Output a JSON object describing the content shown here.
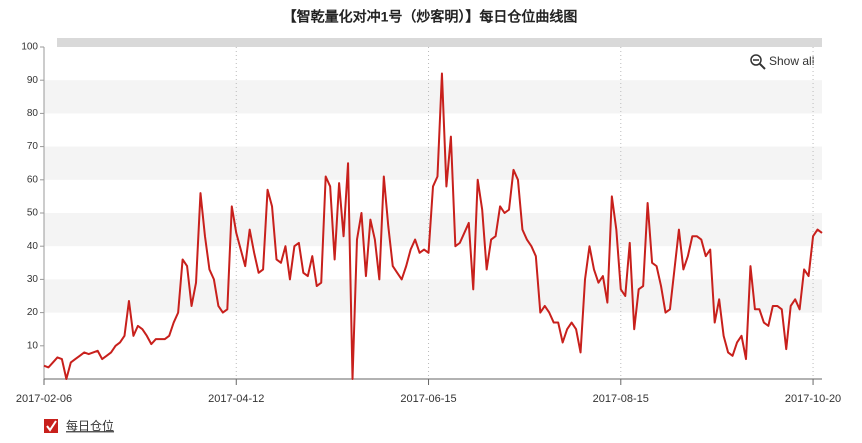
{
  "chart_data": {
    "type": "line",
    "title": "【智乾量化对冲1号（炒客明）】每日仓位曲线图",
    "reset_zoom_label": "Show all",
    "categories": [
      "2017-02-06",
      null,
      null,
      null,
      null,
      null,
      null,
      null,
      null,
      null,
      null,
      null,
      null,
      null,
      null,
      null,
      null,
      null,
      null,
      null,
      null,
      null,
      null,
      null,
      null,
      null,
      null,
      null,
      null,
      null,
      null,
      null,
      null,
      null,
      null,
      null,
      null,
      null,
      null,
      null,
      null,
      null,
      null,
      "2017-04-12",
      null,
      null,
      null,
      null,
      null,
      null,
      null,
      null,
      null,
      null,
      null,
      null,
      null,
      null,
      null,
      null,
      null,
      null,
      null,
      null,
      null,
      null,
      null,
      null,
      null,
      null,
      null,
      null,
      null,
      null,
      null,
      null,
      null,
      null,
      null,
      null,
      null,
      null,
      null,
      null,
      null,
      null,
      "2017-06-15",
      null,
      null,
      null,
      null,
      null,
      null,
      null,
      null,
      null,
      null,
      null,
      null,
      null,
      null,
      null,
      null,
      null,
      null,
      null,
      null,
      null,
      null,
      null,
      null,
      null,
      null,
      null,
      null,
      null,
      null,
      null,
      null,
      null,
      null,
      null,
      null,
      null,
      null,
      null,
      null,
      null,
      null,
      "2017-08-15",
      null,
      null,
      null,
      null,
      null,
      null,
      null,
      null,
      null,
      null,
      null,
      null,
      null,
      null,
      null,
      null,
      null,
      null,
      null,
      null,
      null,
      null,
      null,
      null,
      null,
      null,
      null,
      null,
      null,
      null,
      null,
      null,
      null,
      null,
      null,
      null,
      null,
      null,
      null,
      null,
      null,
      null,
      "2017-10-20",
      null,
      null
    ],
    "series": [
      {
        "name": "每日仓位",
        "color": "#c8201c",
        "values": [
          4,
          3.5,
          5,
          6.5,
          6,
          0,
          5,
          6,
          7,
          8,
          7.5,
          8,
          8.5,
          6,
          7,
          8,
          10,
          11,
          13,
          23.5,
          13,
          16,
          15,
          13,
          10.5,
          12,
          12,
          12,
          13,
          17,
          20,
          36,
          34,
          22,
          29,
          56,
          43,
          33,
          30,
          22,
          20,
          21,
          52,
          44,
          39,
          34,
          45,
          38,
          32,
          33,
          57,
          52,
          36,
          35,
          40,
          30,
          40,
          41,
          32,
          31,
          37,
          28,
          29,
          61,
          58,
          36,
          59,
          43,
          65,
          0,
          42,
          50,
          31,
          48,
          42,
          30,
          61,
          46,
          34,
          32,
          30,
          34,
          39,
          42,
          38,
          39,
          38,
          58,
          61,
          92,
          58,
          73,
          40,
          41,
          44,
          47,
          27,
          60,
          51,
          33,
          42,
          43,
          52,
          50,
          51,
          63,
          60,
          45,
          42,
          40,
          37,
          20,
          22,
          20,
          17,
          17,
          11,
          15,
          17,
          15,
          8,
          30,
          40,
          33,
          29,
          31,
          23,
          55,
          45,
          27,
          25,
          41,
          15,
          27,
          28,
          53,
          35,
          34,
          28,
          20,
          21,
          33,
          45,
          33,
          37,
          43,
          43,
          42,
          37,
          39,
          17,
          24,
          13,
          8,
          7,
          11,
          13,
          6,
          34,
          21,
          21,
          17,
          16,
          22,
          22,
          21,
          9,
          22,
          24,
          21,
          33,
          31,
          43,
          45,
          44
        ]
      }
    ],
    "ylim": [
      0,
      100
    ],
    "yticks": [
      10,
      20,
      30,
      40,
      50,
      60,
      70,
      80,
      90,
      100
    ]
  }
}
